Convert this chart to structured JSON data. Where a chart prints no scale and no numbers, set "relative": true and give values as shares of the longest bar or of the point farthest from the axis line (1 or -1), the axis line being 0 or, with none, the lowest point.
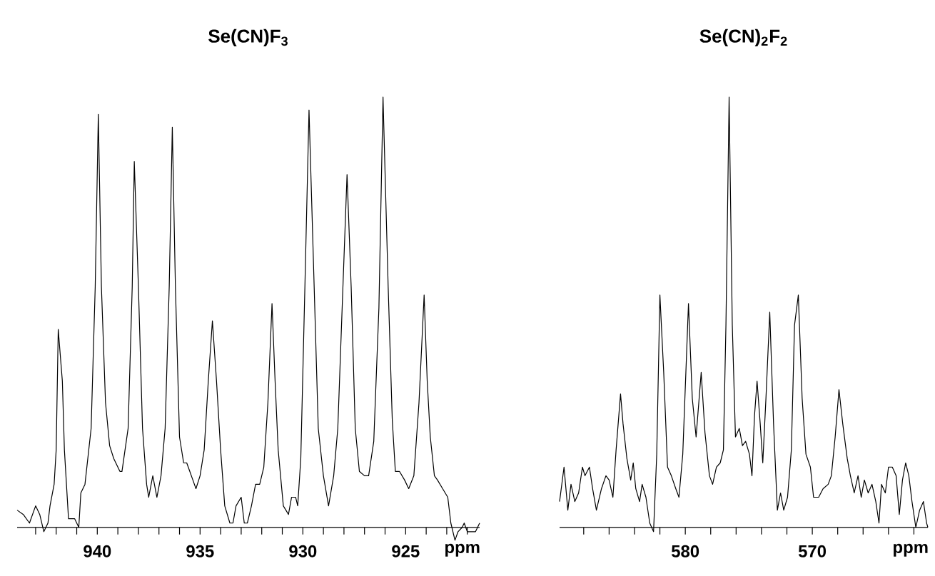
{
  "chart_data": [
    {
      "type": "line",
      "title": "Se(CN)F$_{3}$",
      "xlabel": "ppm",
      "relative": true,
      "tick_labels": "x",
      "color": "#000000",
      "xlim": [
        943.9,
        921.4
      ],
      "xticks": [
        {
          "value": 943,
          "label": null
        },
        {
          "value": 942,
          "label": null
        },
        {
          "value": 941,
          "label": null
        },
        940,
        {
          "value": 939,
          "label": null
        },
        {
          "value": 938,
          "label": null
        },
        {
          "value": 937,
          "label": null
        },
        {
          "value": 936,
          "label": null
        },
        935,
        {
          "value": 934,
          "label": null
        },
        {
          "value": 933,
          "label": null
        },
        {
          "value": 932,
          "label": null
        },
        {
          "value": 931,
          "label": null
        },
        930,
        {
          "value": 929,
          "label": null
        },
        {
          "value": 928,
          "label": null
        },
        {
          "value": 927,
          "label": null
        },
        {
          "value": 926,
          "label": null
        },
        925,
        {
          "value": 924,
          "label": null
        },
        {
          "value": 923,
          "label": null
        },
        {
          "value": 922,
          "label": null
        }
      ],
      "x": [
        943.9,
        943.6,
        943.3,
        943.0,
        942.8,
        942.6,
        942.4,
        942.3,
        942.1,
        942.0,
        941.9,
        941.7,
        941.6,
        941.4,
        941.1,
        940.9,
        940.8,
        940.6,
        940.3,
        940.1,
        939.95,
        939.8,
        939.6,
        939.4,
        939.2,
        938.9,
        938.8,
        938.5,
        938.3,
        938.2,
        938.0,
        937.8,
        937.6,
        937.5,
        937.3,
        937.1,
        936.9,
        936.7,
        936.5,
        936.35,
        936.2,
        936.0,
        935.8,
        935.65,
        935.5,
        935.35,
        935.2,
        935.0,
        934.8,
        934.6,
        934.4,
        934.2,
        934.0,
        933.8,
        933.55,
        933.4,
        933.25,
        933.0,
        932.85,
        932.7,
        932.5,
        932.3,
        932.1,
        931.9,
        931.7,
        931.5,
        931.35,
        931.2,
        930.95,
        930.7,
        930.55,
        930.35,
        930.25,
        930.1,
        929.9,
        929.7,
        929.45,
        929.25,
        929.0,
        928.75,
        928.5,
        928.3,
        928.05,
        927.85,
        927.65,
        927.45,
        927.25,
        927.0,
        926.8,
        926.55,
        926.3,
        926.1,
        925.85,
        925.65,
        925.5,
        925.3,
        925.05,
        924.85,
        924.6,
        924.35,
        924.1,
        923.95,
        923.8,
        923.6,
        923.45,
        923.2,
        922.95,
        922.8,
        922.6,
        922.45,
        922.25,
        922.15,
        922.0,
        921.8,
        921.6,
        921.4
      ],
      "values": [
        0.04,
        0.03,
        0.01,
        0.05,
        0.03,
        -0.01,
        0.01,
        0.05,
        0.1,
        0.18,
        0.46,
        0.34,
        0.18,
        0.02,
        0.02,
        0,
        0.08,
        0.1,
        0.23,
        0.56,
        0.96,
        0.56,
        0.29,
        0.19,
        0.16,
        0.13,
        0.13,
        0.23,
        0.56,
        0.85,
        0.56,
        0.23,
        0.1,
        0.07,
        0.12,
        0.07,
        0.12,
        0.23,
        0.56,
        0.93,
        0.56,
        0.21,
        0.15,
        0.15,
        0.13,
        0.11,
        0.09,
        0.12,
        0.18,
        0.34,
        0.48,
        0.34,
        0.18,
        0.05,
        0.01,
        0.01,
        0.05,
        0.07,
        0.01,
        0.01,
        0.05,
        0.1,
        0.1,
        0.14,
        0.29,
        0.52,
        0.34,
        0.18,
        0.05,
        0.03,
        0.07,
        0.07,
        0.05,
        0.16,
        0.56,
        0.97,
        0.56,
        0.23,
        0.12,
        0.05,
        0.12,
        0.23,
        0.56,
        0.82,
        0.56,
        0.23,
        0.13,
        0.12,
        0.12,
        0.2,
        0.51,
        1,
        0.56,
        0.25,
        0.13,
        0.13,
        0.11,
        0.09,
        0.12,
        0.29,
        0.54,
        0.34,
        0.21,
        0.12,
        0.11,
        0.09,
        0.07,
        0.01,
        -0.03,
        -0.01,
        0,
        0.01,
        -0.01,
        -0.01,
        -0.01,
        0.01
      ]
    },
    {
      "type": "line",
      "title": "Se(CN)$_{2}$F$_{2}$",
      "xlabel": "ppm",
      "relative": true,
      "tick_labels": "x",
      "color": "#000000",
      "xlim": [
        589.9,
        560.9
      ],
      "xticks": [
        {
          "value": 588,
          "label": null
        },
        {
          "value": 586,
          "label": null
        },
        {
          "value": 584,
          "label": null
        },
        {
          "value": 582,
          "label": null
        },
        580,
        {
          "value": 578,
          "label": null
        },
        {
          "value": 576,
          "label": null
        },
        {
          "value": 574,
          "label": null
        },
        {
          "value": 572,
          "label": null
        },
        570,
        {
          "value": 568,
          "label": null
        },
        {
          "value": 566,
          "label": null
        },
        {
          "value": 564,
          "label": null
        },
        {
          "value": 562,
          "label": null
        }
      ],
      "x": [
        589.9,
        589.55,
        589.25,
        589.0,
        588.7,
        588.4,
        588.1,
        587.9,
        587.55,
        587.3,
        587.0,
        586.6,
        586.25,
        586.0,
        585.7,
        585.45,
        585.1,
        584.9,
        584.6,
        584.3,
        584.1,
        583.9,
        583.6,
        583.4,
        583.1,
        582.8,
        582.5,
        582.25,
        582.0,
        581.7,
        581.4,
        581.1,
        580.75,
        580.5,
        580.2,
        579.75,
        579.45,
        579.15,
        578.75,
        578.45,
        578.1,
        577.85,
        577.55,
        577.25,
        577.0,
        576.8,
        576.55,
        576.3,
        576.05,
        575.75,
        575.5,
        575.25,
        574.95,
        574.75,
        574.55,
        574.35,
        574.1,
        573.9,
        573.65,
        573.35,
        573.05,
        572.75,
        572.5,
        572.25,
        571.95,
        571.65,
        571.4,
        571.1,
        570.8,
        570.5,
        570.15,
        569.9,
        569.5,
        569.15,
        568.75,
        568.5,
        568.2,
        567.9,
        567.6,
        567.25,
        567.0,
        566.7,
        566.4,
        566.15,
        565.9,
        565.6,
        565.3,
        565.0,
        564.75,
        564.55,
        564.25,
        564.0,
        563.7,
        563.4,
        563.15,
        562.9,
        562.65,
        562.4,
        562.15,
        561.85,
        561.55,
        561.25,
        561.0,
        560.9
      ],
      "values": [
        0.06,
        0.14,
        0.04,
        0.1,
        0.06,
        0.08,
        0.14,
        0.12,
        0.14,
        0.09,
        0.04,
        0.09,
        0.12,
        0.11,
        0.07,
        0.18,
        0.31,
        0.24,
        0.16,
        0.11,
        0.15,
        0.09,
        0.06,
        0.1,
        0.07,
        0.01,
        -0.01,
        0.17,
        0.54,
        0.36,
        0.14,
        0.12,
        0.09,
        0.07,
        0.17,
        0.52,
        0.3,
        0.21,
        0.36,
        0.22,
        0.12,
        0.1,
        0.14,
        0.15,
        0.18,
        0.47,
        1,
        0.47,
        0.21,
        0.23,
        0.19,
        0.2,
        0.17,
        0.12,
        0.26,
        0.34,
        0.24,
        0.15,
        0.3,
        0.5,
        0.24,
        0.04,
        0.08,
        0.04,
        0.07,
        0.18,
        0.47,
        0.54,
        0.3,
        0.17,
        0.14,
        0.07,
        0.07,
        0.09,
        0.1,
        0.12,
        0.21,
        0.32,
        0.24,
        0.16,
        0.12,
        0.08,
        0.12,
        0.07,
        0.11,
        0.08,
        0.1,
        0.06,
        0.01,
        0.1,
        0.08,
        0.14,
        0.14,
        0.12,
        0.03,
        0.11,
        0.15,
        0.12,
        0.06,
        0,
        0.04,
        0.06,
        0.01,
        0
      ]
    }
  ]
}
